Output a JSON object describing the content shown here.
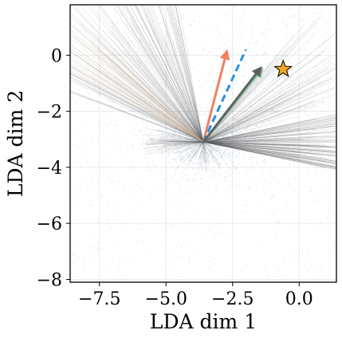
{
  "chart_data": {
    "type": "scatter",
    "xlabel": "LDA dim 1",
    "ylabel": "LDA dim 2",
    "xlim": [
      -8.6,
      1.4
    ],
    "ylim": [
      -8.1,
      1.8
    ],
    "x_ticks": [
      -7.5,
      -5.0,
      -2.5,
      0.0
    ],
    "x_tick_labels": [
      "−7.5",
      "−5.0",
      "−2.5",
      "0.0"
    ],
    "y_ticks": [
      0,
      -2,
      -4,
      -6,
      -8
    ],
    "y_tick_labels": [
      "0",
      "−2",
      "−4",
      "−6",
      "−8"
    ],
    "grid": true,
    "legend": "none",
    "origin": {
      "x": -3.6,
      "y": -3.1
    },
    "background_points": {
      "color": "#6f9fe0",
      "description_count": 1800
    },
    "ray_bundles": [
      {
        "color": "#5a5a5a",
        "from_angle_deg": 100,
        "to_angle_deg": 160,
        "length": 6.5,
        "count": 140
      },
      {
        "color": "#d9b28a",
        "from_angle_deg": 135,
        "to_angle_deg": 150,
        "length": 6.5,
        "count": 40
      },
      {
        "color": "#5a5a5a",
        "from_angle_deg": -12,
        "to_angle_deg": 12,
        "length": 6.0,
        "count": 120
      },
      {
        "color": "#5a5a5a",
        "from_angle_deg": 15,
        "to_angle_deg": 50,
        "length": 5.5,
        "count": 60
      },
      {
        "color": "#5a5a5a",
        "from_angle_deg": 165,
        "to_angle_deg": 195,
        "length": 2.0,
        "count": 40
      },
      {
        "color": "#5a5a5a",
        "from_angle_deg": 200,
        "to_angle_deg": 340,
        "length": 1.0,
        "count": 40
      }
    ],
    "arrows": [
      {
        "name": "orange-arrow",
        "color": "#f08060",
        "x0": -3.6,
        "y0": -3.1,
        "x1": -2.7,
        "y1": 0.2,
        "style": "solid"
      },
      {
        "name": "dashed-arrow",
        "color": "#2a90e0",
        "x0": -3.6,
        "y0": -3.1,
        "x1": -2.0,
        "y1": 0.2,
        "style": "dashed"
      },
      {
        "name": "green-arrow",
        "color": "#8cc8a0",
        "x0": -3.6,
        "y0": -3.1,
        "x1": -1.35,
        "y1": -0.45,
        "style": "solid"
      },
      {
        "name": "dark-arrow",
        "color": "#606060",
        "x0": -3.6,
        "y0": -3.1,
        "x1": -1.4,
        "y1": -0.4,
        "style": "solid"
      }
    ],
    "star": {
      "x": -0.6,
      "y": -0.5,
      "color": "#f5a623"
    }
  }
}
